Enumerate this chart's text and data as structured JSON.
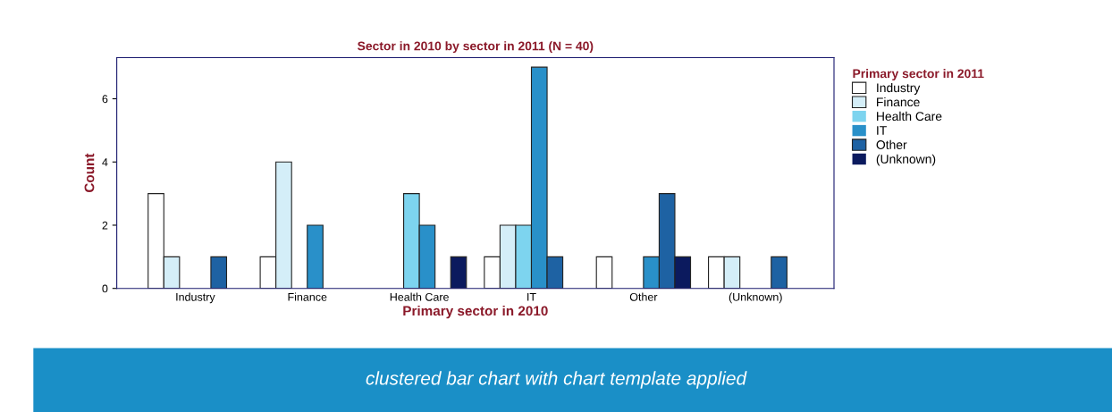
{
  "chart_data": {
    "type": "bar",
    "title": "Sector in 2010 by sector in 2011 (N = 40)",
    "xlabel": "Primary sector in 2010",
    "ylabel": "Count",
    "legend_title": "Primary sector in 2011",
    "categories": [
      "Industry",
      "Finance",
      "Health Care",
      "IT",
      "Other",
      "(Unknown)"
    ],
    "series": [
      {
        "name": "Industry",
        "color": "#ffffff",
        "values": [
          3,
          1,
          0,
          1,
          1,
          1
        ]
      },
      {
        "name": "Finance",
        "color": "#d4eef8",
        "values": [
          1,
          4,
          0,
          2,
          0,
          1
        ]
      },
      {
        "name": "Health Care",
        "color": "#7dd4ef",
        "values": [
          0,
          0,
          3,
          2,
          0,
          0
        ]
      },
      {
        "name": "IT",
        "color": "#2990c9",
        "values": [
          0,
          2,
          2,
          7,
          1,
          0
        ]
      },
      {
        "name": "Other",
        "color": "#1e62a3",
        "values": [
          1,
          0,
          0,
          1,
          3,
          1
        ]
      },
      {
        "name": "(Unknown)",
        "color": "#0b1a5e",
        "values": [
          0,
          0,
          1,
          0,
          1,
          0
        ]
      }
    ],
    "ylim": [
      0,
      7.3
    ],
    "yticks": [
      0,
      2,
      4,
      6
    ],
    "grid": false,
    "legend": "right",
    "annotations": [
      "clustered bar chart with chart template applied"
    ]
  }
}
